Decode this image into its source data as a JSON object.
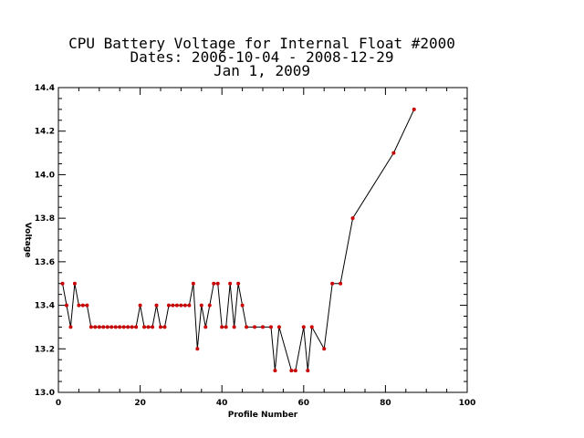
{
  "chart_data": {
    "type": "line",
    "title": [
      "CPU Battery Voltage for Internal Float #2000",
      "Dates:  2006-10-04 -  2008-12-29",
      "Jan  1, 2009"
    ],
    "xlabel": "Profile Number",
    "ylabel": "Voltage",
    "xlim": [
      0,
      100
    ],
    "ylim": [
      13.0,
      14.4
    ],
    "x_ticks": [
      "0",
      "20",
      "40",
      "60",
      "80",
      "100"
    ],
    "y_ticks": [
      "13.0",
      "13.2",
      "13.4",
      "13.6",
      "13.8",
      "14.0",
      "14.2",
      "14.4"
    ],
    "grid": false,
    "line_color": "#000000",
    "marker_color": "#cc0000",
    "series": [
      {
        "x": [
          1,
          2,
          3,
          4,
          5,
          6,
          7,
          8,
          9,
          10,
          11,
          12,
          13,
          14,
          15,
          16,
          17,
          18,
          19,
          20,
          21,
          22,
          23,
          24,
          25,
          26,
          27,
          28,
          29,
          30,
          31,
          32,
          33,
          34,
          35,
          36,
          37,
          38,
          39,
          40,
          41,
          42,
          43,
          44,
          45,
          46,
          48,
          50,
          52,
          53,
          54,
          57,
          58,
          60,
          61,
          62,
          65,
          67,
          69,
          72,
          82,
          87
        ],
        "y": [
          13.5,
          13.4,
          13.3,
          13.5,
          13.4,
          13.4,
          13.4,
          13.3,
          13.3,
          13.3,
          13.3,
          13.3,
          13.3,
          13.3,
          13.3,
          13.3,
          13.3,
          13.3,
          13.3,
          13.4,
          13.3,
          13.3,
          13.3,
          13.4,
          13.3,
          13.3,
          13.4,
          13.4,
          13.4,
          13.4,
          13.4,
          13.4,
          13.5,
          13.2,
          13.4,
          13.3,
          13.4,
          13.5,
          13.5,
          13.3,
          13.3,
          13.5,
          13.3,
          13.5,
          13.4,
          13.3,
          13.3,
          13.3,
          13.3,
          13.1,
          13.3,
          13.1,
          13.1,
          13.3,
          13.1,
          13.3,
          13.2,
          13.5,
          13.5,
          13.8,
          14.1,
          14.3
        ]
      }
    ]
  }
}
